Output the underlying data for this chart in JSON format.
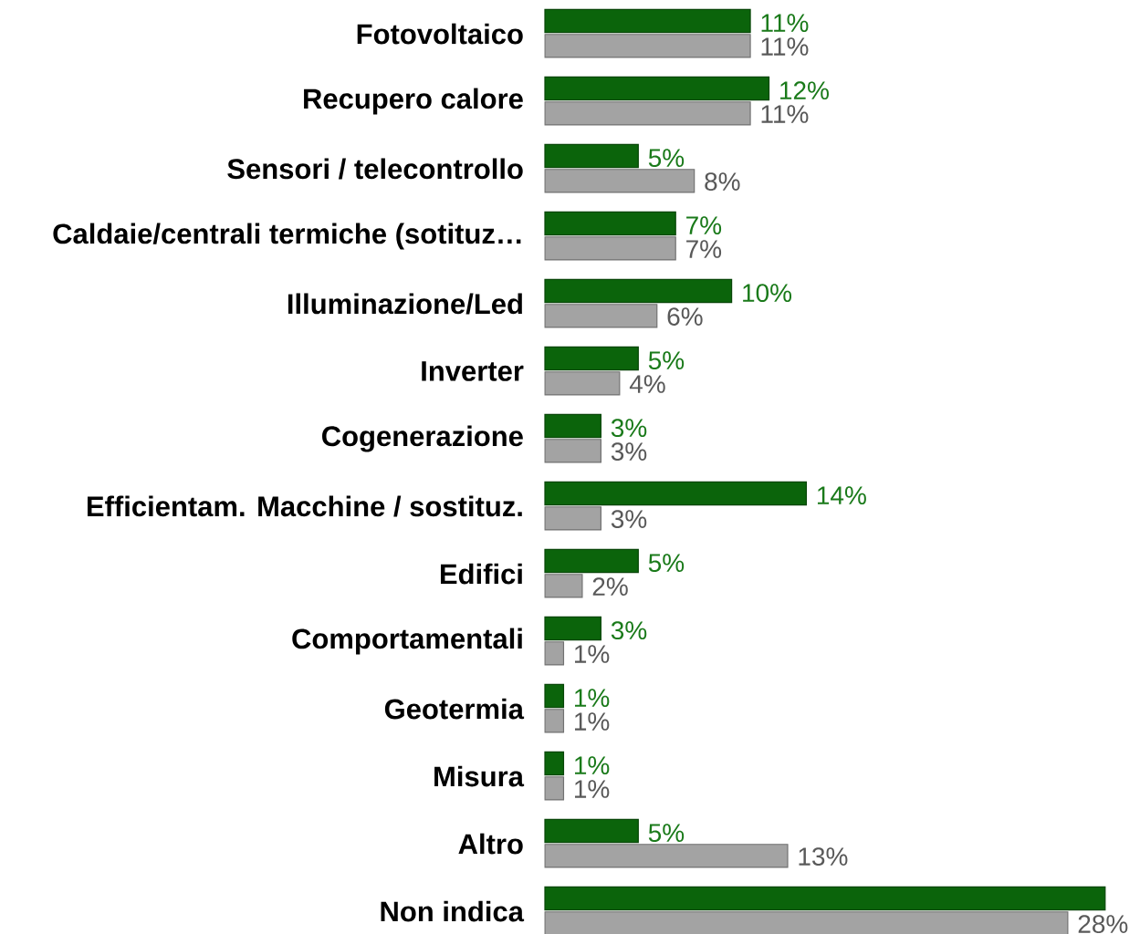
{
  "chart_data": {
    "type": "bar",
    "orientation": "horizontal",
    "tick_labels": "y",
    "categories": [
      "Fotovoltaico",
      "Recupero calore",
      "Sensori / telecontrollo",
      "Caldaie/centrali termiche (sotituz…",
      "Illuminazione/Led",
      "Inverter",
      "Cogenerazione",
      "Efficientam. Macchine / sostituz.",
      "Edifici",
      "Comportamentali",
      "Geotermia",
      "Misura",
      "Altro",
      "Non indica"
    ],
    "series": [
      {
        "color": "#0b640b",
        "values": [
          11,
          12,
          5,
          7,
          10,
          5,
          3,
          14,
          5,
          3,
          1,
          1,
          5,
          30
        ],
        "value_labels": [
          "11%",
          "12%",
          "5%",
          "7%",
          "10%",
          "5%",
          "3%",
          "14%",
          "5%",
          "3%",
          "1%",
          "1%",
          "5%",
          null
        ]
      },
      {
        "color": "#a3a3a3",
        "values": [
          11,
          11,
          8,
          7,
          6,
          4,
          3,
          3,
          2,
          1,
          1,
          1,
          13,
          28
        ],
        "value_labels": [
          "11%",
          "11%",
          "8%",
          "7%",
          "6%",
          "4%",
          "3%",
          "3%",
          "2%",
          "1%",
          "1%",
          "1%",
          "13%",
          "28%"
        ]
      }
    ]
  }
}
